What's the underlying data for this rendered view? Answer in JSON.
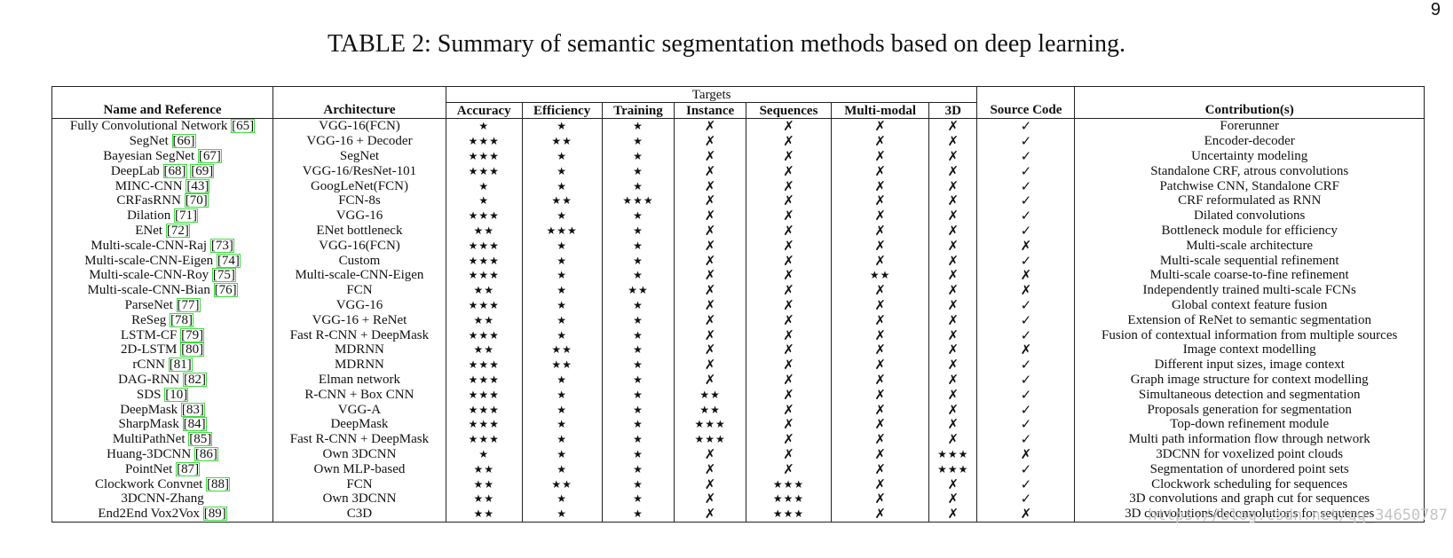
{
  "page_number": "9",
  "caption": "TABLE 2: Summary of semantic segmentation methods based on deep learning.",
  "header": {
    "group_label": "Targets",
    "columns": [
      "Name and Reference",
      "Architecture",
      "Accuracy",
      "Efficiency",
      "Training",
      "Instance",
      "Sequences",
      "Multi-modal",
      "3D",
      "Source Code",
      "Contribution(s)"
    ]
  },
  "rows": [
    {
      "name": "Fully Convolutional Network",
      "refs": [
        "65"
      ],
      "arch": "VGG-16(FCN)",
      "accuracy": "★",
      "efficiency": "★",
      "training": "★",
      "instance": "✗",
      "sequences": "✗",
      "multimodal": "✗",
      "threed": "✗",
      "source": "✓",
      "contribution": "Forerunner"
    },
    {
      "name": "SegNet",
      "refs": [
        "66"
      ],
      "arch": "VGG-16 + Decoder",
      "accuracy": "★★★",
      "efficiency": "★★",
      "training": "★",
      "instance": "✗",
      "sequences": "✗",
      "multimodal": "✗",
      "threed": "✗",
      "source": "✓",
      "contribution": "Encoder-decoder"
    },
    {
      "name": "Bayesian SegNet",
      "refs": [
        "67"
      ],
      "arch": "SegNet",
      "accuracy": "★★★",
      "efficiency": "★",
      "training": "★",
      "instance": "✗",
      "sequences": "✗",
      "multimodal": "✗",
      "threed": "✗",
      "source": "✓",
      "contribution": "Uncertainty modeling"
    },
    {
      "name": "DeepLab",
      "refs": [
        "68",
        "69"
      ],
      "arch": "VGG-16/ResNet-101",
      "accuracy": "★★★",
      "efficiency": "★",
      "training": "★",
      "instance": "✗",
      "sequences": "✗",
      "multimodal": "✗",
      "threed": "✗",
      "source": "✓",
      "contribution": "Standalone CRF, atrous convolutions"
    },
    {
      "name": "MINC-CNN",
      "refs": [
        "43"
      ],
      "arch": "GoogLeNet(FCN)",
      "accuracy": "★",
      "efficiency": "★",
      "training": "★",
      "instance": "✗",
      "sequences": "✗",
      "multimodal": "✗",
      "threed": "✗",
      "source": "✓",
      "contribution": "Patchwise CNN, Standalone CRF"
    },
    {
      "name": "CRFasRNN",
      "refs": [
        "70"
      ],
      "arch": "FCN-8s",
      "accuracy": "★",
      "efficiency": "★★",
      "training": "★★★",
      "instance": "✗",
      "sequences": "✗",
      "multimodal": "✗",
      "threed": "✗",
      "source": "✓",
      "contribution": "CRF reformulated as RNN"
    },
    {
      "name": "Dilation",
      "refs": [
        "71"
      ],
      "arch": "VGG-16",
      "accuracy": "★★★",
      "efficiency": "★",
      "training": "★",
      "instance": "✗",
      "sequences": "✗",
      "multimodal": "✗",
      "threed": "✗",
      "source": "✓",
      "contribution": "Dilated convolutions"
    },
    {
      "name": "ENet",
      "refs": [
        "72"
      ],
      "arch": "ENet bottleneck",
      "accuracy": "★★",
      "efficiency": "★★★",
      "training": "★",
      "instance": "✗",
      "sequences": "✗",
      "multimodal": "✗",
      "threed": "✗",
      "source": "✓",
      "contribution": "Bottleneck module for efficiency"
    },
    {
      "name": "Multi-scale-CNN-Raj",
      "refs": [
        "73"
      ],
      "arch": "VGG-16(FCN)",
      "accuracy": "★★★",
      "efficiency": "★",
      "training": "★",
      "instance": "✗",
      "sequences": "✗",
      "multimodal": "✗",
      "threed": "✗",
      "source": "✗",
      "contribution": "Multi-scale architecture"
    },
    {
      "name": "Multi-scale-CNN-Eigen",
      "refs": [
        "74"
      ],
      "arch": "Custom",
      "accuracy": "★★★",
      "efficiency": "★",
      "training": "★",
      "instance": "✗",
      "sequences": "✗",
      "multimodal": "✗",
      "threed": "✗",
      "source": "✓",
      "contribution": "Multi-scale sequential refinement"
    },
    {
      "name": "Multi-scale-CNN-Roy",
      "refs": [
        "75"
      ],
      "arch": "Multi-scale-CNN-Eigen",
      "accuracy": "★★★",
      "efficiency": "★",
      "training": "★",
      "instance": "✗",
      "sequences": "✗",
      "multimodal": "★★",
      "threed": "✗",
      "source": "✗",
      "contribution": "Multi-scale coarse-to-fine refinement"
    },
    {
      "name": "Multi-scale-CNN-Bian",
      "refs": [
        "76"
      ],
      "arch": "FCN",
      "accuracy": "★★",
      "efficiency": "★",
      "training": "★★",
      "instance": "✗",
      "sequences": "✗",
      "multimodal": "✗",
      "threed": "✗",
      "source": "✗",
      "contribution": "Independently trained multi-scale FCNs"
    },
    {
      "name": "ParseNet",
      "refs": [
        "77"
      ],
      "arch": "VGG-16",
      "accuracy": "★★★",
      "efficiency": "★",
      "training": "★",
      "instance": "✗",
      "sequences": "✗",
      "multimodal": "✗",
      "threed": "✗",
      "source": "✓",
      "contribution": "Global context feature fusion"
    },
    {
      "name": "ReSeg",
      "refs": [
        "78"
      ],
      "arch": "VGG-16 + ReNet",
      "accuracy": "★★",
      "efficiency": "★",
      "training": "★",
      "instance": "✗",
      "sequences": "✗",
      "multimodal": "✗",
      "threed": "✗",
      "source": "✓",
      "contribution": "Extension of ReNet to semantic segmentation"
    },
    {
      "name": "LSTM-CF",
      "refs": [
        "79"
      ],
      "arch": "Fast R-CNN + DeepMask",
      "accuracy": "★★★",
      "efficiency": "★",
      "training": "★",
      "instance": "✗",
      "sequences": "✗",
      "multimodal": "✗",
      "threed": "✗",
      "source": "✓",
      "contribution": "Fusion of contextual information from multiple sources"
    },
    {
      "name": "2D-LSTM",
      "refs": [
        "80"
      ],
      "arch": "MDRNN",
      "accuracy": "★★",
      "efficiency": "★★",
      "training": "★",
      "instance": "✗",
      "sequences": "✗",
      "multimodal": "✗",
      "threed": "✗",
      "source": "✗",
      "contribution": "Image context modelling"
    },
    {
      "name": "rCNN",
      "refs": [
        "81"
      ],
      "arch": "MDRNN",
      "accuracy": "★★★",
      "efficiency": "★★",
      "training": "★",
      "instance": "✗",
      "sequences": "✗",
      "multimodal": "✗",
      "threed": "✗",
      "source": "✓",
      "contribution": "Different input sizes, image context"
    },
    {
      "name": "DAG-RNN",
      "refs": [
        "82"
      ],
      "arch": "Elman network",
      "accuracy": "★★★",
      "efficiency": "★",
      "training": "★",
      "instance": "✗",
      "sequences": "✗",
      "multimodal": "✗",
      "threed": "✗",
      "source": "✓",
      "contribution": "Graph image structure for context modelling"
    },
    {
      "name": "SDS",
      "refs": [
        "10"
      ],
      "arch": "R-CNN + Box CNN",
      "accuracy": "★★★",
      "efficiency": "★",
      "training": "★",
      "instance": "★★",
      "sequences": "✗",
      "multimodal": "✗",
      "threed": "✗",
      "source": "✓",
      "contribution": "Simultaneous detection and segmentation"
    },
    {
      "name": "DeepMask",
      "refs": [
        "83"
      ],
      "arch": "VGG-A",
      "accuracy": "★★★",
      "efficiency": "★",
      "training": "★",
      "instance": "★★",
      "sequences": "✗",
      "multimodal": "✗",
      "threed": "✗",
      "source": "✓",
      "contribution": "Proposals generation for segmentation"
    },
    {
      "name": "SharpMask",
      "refs": [
        "84"
      ],
      "arch": "DeepMask",
      "accuracy": "★★★",
      "efficiency": "★",
      "training": "★",
      "instance": "★★★",
      "sequences": "✗",
      "multimodal": "✗",
      "threed": "✗",
      "source": "✓",
      "contribution": "Top-down refinement module"
    },
    {
      "name": "MultiPathNet",
      "refs": [
        "85"
      ],
      "arch": "Fast R-CNN + DeepMask",
      "accuracy": "★★★",
      "efficiency": "★",
      "training": "★",
      "instance": "★★★",
      "sequences": "✗",
      "multimodal": "✗",
      "threed": "✗",
      "source": "✓",
      "contribution": "Multi path information flow through network"
    },
    {
      "name": "Huang-3DCNN",
      "refs": [
        "86"
      ],
      "arch": "Own 3DCNN",
      "accuracy": "★",
      "efficiency": "★",
      "training": "★",
      "instance": "✗",
      "sequences": "✗",
      "multimodal": "✗",
      "threed": "★★★",
      "source": "✗",
      "contribution": "3DCNN for voxelized point clouds"
    },
    {
      "name": "PointNet",
      "refs": [
        "87"
      ],
      "arch": "Own MLP-based",
      "accuracy": "★★",
      "efficiency": "★",
      "training": "★",
      "instance": "✗",
      "sequences": "✗",
      "multimodal": "✗",
      "threed": "★★★",
      "source": "✓",
      "contribution": "Segmentation of unordered point sets"
    },
    {
      "name": "Clockwork Convnet",
      "refs": [
        "88"
      ],
      "arch": "FCN",
      "accuracy": "★★",
      "efficiency": "★★",
      "training": "★",
      "instance": "✗",
      "sequences": "★★★",
      "multimodal": "✗",
      "threed": "✗",
      "source": "✓",
      "contribution": "Clockwork scheduling for sequences"
    },
    {
      "name": "3DCNN-Zhang",
      "refs": [],
      "arch": "Own 3DCNN",
      "accuracy": "★★",
      "efficiency": "★",
      "training": "★",
      "instance": "✗",
      "sequences": "★★★",
      "multimodal": "✗",
      "threed": "✗",
      "source": "✓",
      "contribution": "3D convolutions and graph cut for sequences"
    },
    {
      "name": "End2End Vox2Vox",
      "refs": [
        "89"
      ],
      "arch": "C3D",
      "accuracy": "★★",
      "efficiency": "★",
      "training": "★",
      "instance": "✗",
      "sequences": "★★★",
      "multimodal": "✗",
      "threed": "✗",
      "source": "✗",
      "contribution": "3D convolutions/deconvolutions for sequences"
    }
  ],
  "watermark": "https://blog.csdn.net/qq_34650787"
}
